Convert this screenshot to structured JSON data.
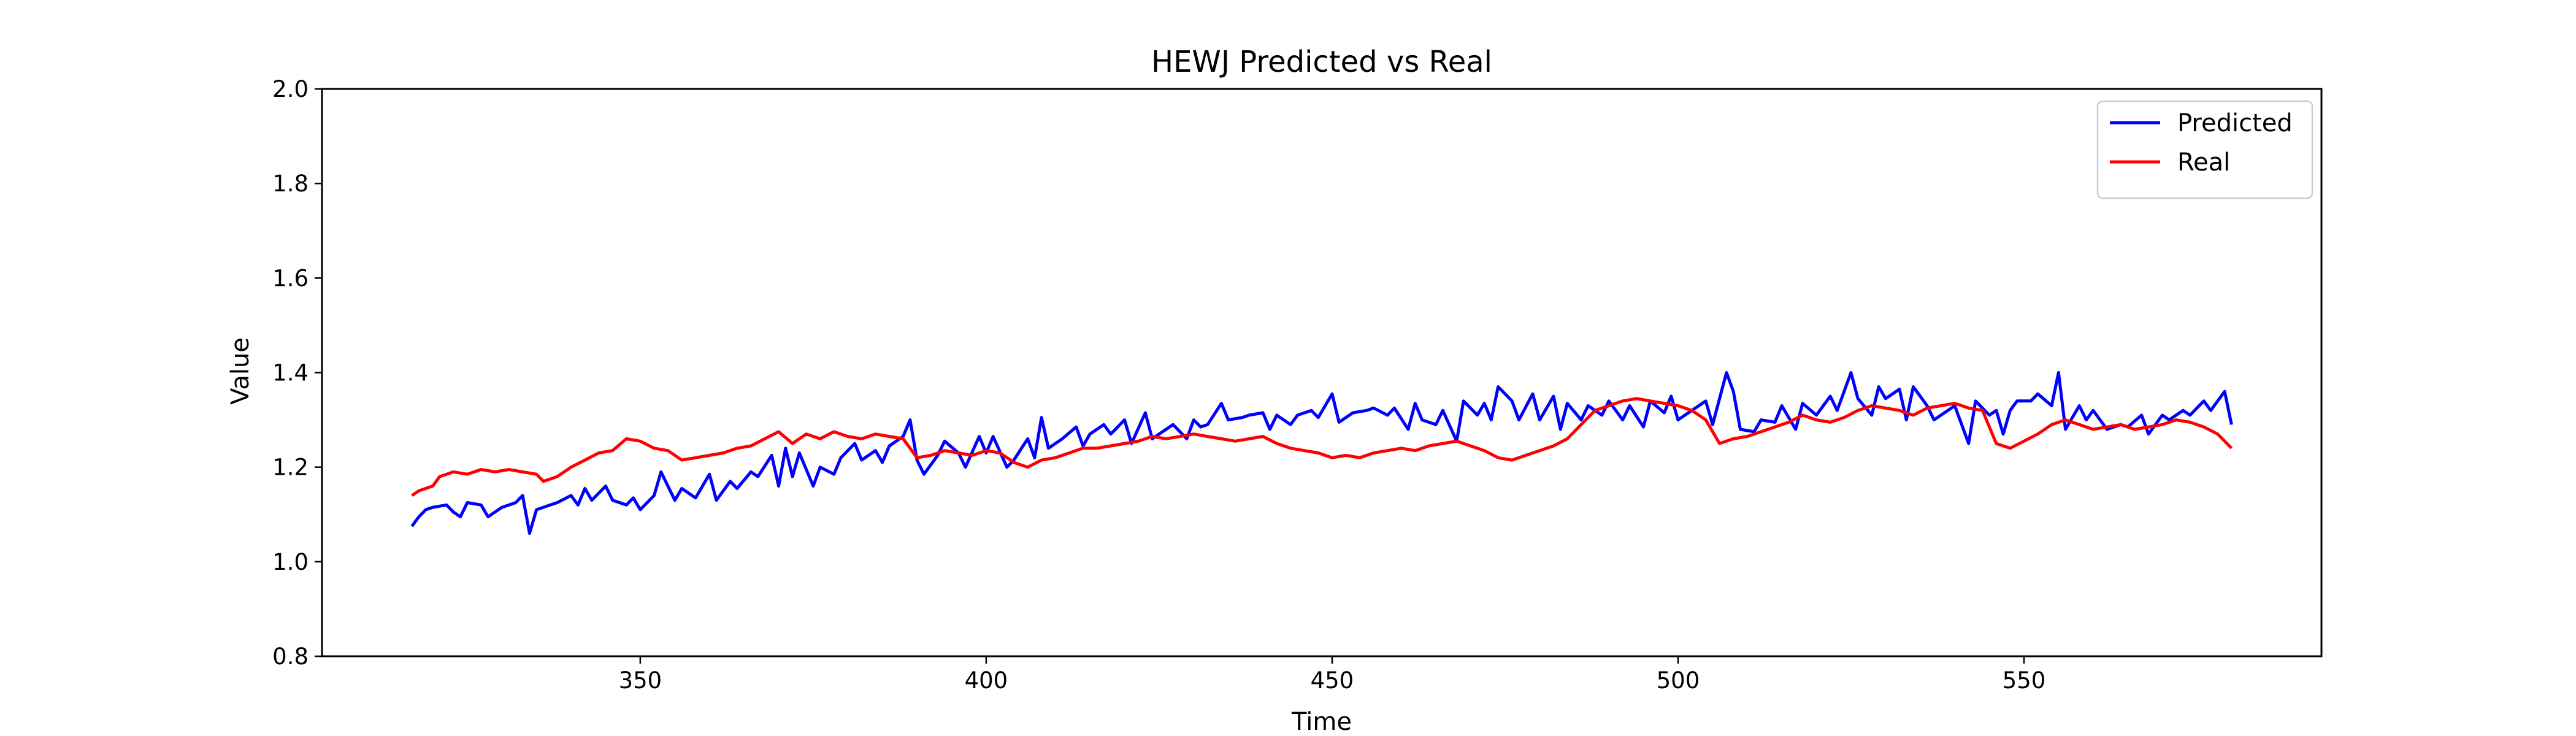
{
  "chart_data": {
    "type": "line",
    "title": "HEWJ Predicted vs Real",
    "xlabel": "Time",
    "ylabel": "Value",
    "xlim": [
      304,
      593
    ],
    "ylim": [
      0.8,
      2.0
    ],
    "xticks": [
      350,
      400,
      450,
      500,
      550
    ],
    "yticks": [
      0.8,
      1.0,
      1.2,
      1.4,
      1.6,
      1.8,
      2.0
    ],
    "grid": false,
    "legend_position": "top-right",
    "series": [
      {
        "name": "Predicted",
        "color": "#0000ff",
        "points": [
          [
            317,
            1.075
          ],
          [
            318,
            1.095
          ],
          [
            319,
            1.11
          ],
          [
            320,
            1.115
          ],
          [
            322,
            1.12
          ],
          [
            323,
            1.105
          ],
          [
            324,
            1.095
          ],
          [
            325,
            1.125
          ],
          [
            327,
            1.12
          ],
          [
            328,
            1.095
          ],
          [
            330,
            1.115
          ],
          [
            332,
            1.125
          ],
          [
            333,
            1.14
          ],
          [
            334,
            1.06
          ],
          [
            335,
            1.11
          ],
          [
            337,
            1.12
          ],
          [
            338,
            1.125
          ],
          [
            340,
            1.14
          ],
          [
            341,
            1.12
          ],
          [
            342,
            1.155
          ],
          [
            343,
            1.13
          ],
          [
            345,
            1.16
          ],
          [
            346,
            1.13
          ],
          [
            348,
            1.12
          ],
          [
            349,
            1.135
          ],
          [
            350,
            1.11
          ],
          [
            352,
            1.14
          ],
          [
            353,
            1.19
          ],
          [
            355,
            1.13
          ],
          [
            356,
            1.155
          ],
          [
            358,
            1.135
          ],
          [
            360,
            1.185
          ],
          [
            361,
            1.13
          ],
          [
            363,
            1.17
          ],
          [
            364,
            1.155
          ],
          [
            366,
            1.19
          ],
          [
            367,
            1.18
          ],
          [
            369,
            1.225
          ],
          [
            370,
            1.16
          ],
          [
            371,
            1.24
          ],
          [
            372,
            1.18
          ],
          [
            373,
            1.23
          ],
          [
            375,
            1.16
          ],
          [
            376,
            1.2
          ],
          [
            378,
            1.185
          ],
          [
            379,
            1.22
          ],
          [
            381,
            1.25
          ],
          [
            382,
            1.215
          ],
          [
            384,
            1.235
          ],
          [
            385,
            1.21
          ],
          [
            386,
            1.245
          ],
          [
            388,
            1.265
          ],
          [
            389,
            1.3
          ],
          [
            390,
            1.215
          ],
          [
            391,
            1.185
          ],
          [
            393,
            1.225
          ],
          [
            394,
            1.255
          ],
          [
            396,
            1.23
          ],
          [
            397,
            1.2
          ],
          [
            399,
            1.265
          ],
          [
            400,
            1.23
          ],
          [
            401,
            1.265
          ],
          [
            403,
            1.2
          ],
          [
            404,
            1.215
          ],
          [
            406,
            1.26
          ],
          [
            407,
            1.22
          ],
          [
            408,
            1.305
          ],
          [
            409,
            1.24
          ],
          [
            411,
            1.26
          ],
          [
            413,
            1.285
          ],
          [
            414,
            1.245
          ],
          [
            415,
            1.27
          ],
          [
            417,
            1.29
          ],
          [
            418,
            1.27
          ],
          [
            420,
            1.3
          ],
          [
            421,
            1.25
          ],
          [
            423,
            1.315
          ],
          [
            424,
            1.26
          ],
          [
            426,
            1.28
          ],
          [
            427,
            1.29
          ],
          [
            429,
            1.26
          ],
          [
            430,
            1.3
          ],
          [
            431,
            1.285
          ],
          [
            432,
            1.29
          ],
          [
            434,
            1.335
          ],
          [
            435,
            1.3
          ],
          [
            437,
            1.305
          ],
          [
            438,
            1.31
          ],
          [
            440,
            1.315
          ],
          [
            441,
            1.28
          ],
          [
            442,
            1.31
          ],
          [
            444,
            1.29
          ],
          [
            445,
            1.31
          ],
          [
            447,
            1.32
          ],
          [
            448,
            1.305
          ],
          [
            450,
            1.355
          ],
          [
            451,
            1.295
          ],
          [
            453,
            1.315
          ],
          [
            455,
            1.32
          ],
          [
            456,
            1.325
          ],
          [
            458,
            1.31
          ],
          [
            459,
            1.325
          ],
          [
            461,
            1.28
          ],
          [
            462,
            1.335
          ],
          [
            463,
            1.3
          ],
          [
            465,
            1.29
          ],
          [
            466,
            1.32
          ],
          [
            468,
            1.255
          ],
          [
            469,
            1.34
          ],
          [
            471,
            1.31
          ],
          [
            472,
            1.335
          ],
          [
            473,
            1.3
          ],
          [
            474,
            1.37
          ],
          [
            476,
            1.34
          ],
          [
            477,
            1.3
          ],
          [
            479,
            1.355
          ],
          [
            480,
            1.3
          ],
          [
            482,
            1.35
          ],
          [
            483,
            1.28
          ],
          [
            484,
            1.335
          ],
          [
            486,
            1.3
          ],
          [
            487,
            1.33
          ],
          [
            489,
            1.31
          ],
          [
            490,
            1.34
          ],
          [
            492,
            1.3
          ],
          [
            493,
            1.33
          ],
          [
            495,
            1.285
          ],
          [
            496,
            1.34
          ],
          [
            498,
            1.315
          ],
          [
            499,
            1.35
          ],
          [
            500,
            1.3
          ],
          [
            502,
            1.32
          ],
          [
            504,
            1.34
          ],
          [
            505,
            1.29
          ],
          [
            507,
            1.4
          ],
          [
            508,
            1.36
          ],
          [
            509,
            1.28
          ],
          [
            511,
            1.275
          ],
          [
            512,
            1.3
          ],
          [
            514,
            1.295
          ],
          [
            515,
            1.33
          ],
          [
            517,
            1.28
          ],
          [
            518,
            1.335
          ],
          [
            520,
            1.31
          ],
          [
            522,
            1.35
          ],
          [
            523,
            1.32
          ],
          [
            525,
            1.4
          ],
          [
            526,
            1.345
          ],
          [
            528,
            1.31
          ],
          [
            529,
            1.37
          ],
          [
            530,
            1.345
          ],
          [
            532,
            1.365
          ],
          [
            533,
            1.3
          ],
          [
            534,
            1.37
          ],
          [
            536,
            1.33
          ],
          [
            537,
            1.3
          ],
          [
            539,
            1.32
          ],
          [
            540,
            1.33
          ],
          [
            542,
            1.25
          ],
          [
            543,
            1.34
          ],
          [
            545,
            1.31
          ],
          [
            546,
            1.32
          ],
          [
            547,
            1.27
          ],
          [
            548,
            1.32
          ],
          [
            549,
            1.34
          ],
          [
            551,
            1.34
          ],
          [
            552,
            1.355
          ],
          [
            554,
            1.33
          ],
          [
            555,
            1.4
          ],
          [
            556,
            1.28
          ],
          [
            558,
            1.33
          ],
          [
            559,
            1.3
          ],
          [
            560,
            1.32
          ],
          [
            562,
            1.28
          ],
          [
            564,
            1.29
          ],
          [
            565,
            1.285
          ],
          [
            567,
            1.31
          ],
          [
            568,
            1.27
          ],
          [
            570,
            1.31
          ],
          [
            571,
            1.3
          ],
          [
            573,
            1.32
          ],
          [
            574,
            1.31
          ],
          [
            576,
            1.34
          ],
          [
            577,
            1.32
          ],
          [
            579,
            1.36
          ],
          [
            580,
            1.29
          ]
        ]
      },
      {
        "name": "Real",
        "color": "#ff0000",
        "points": [
          [
            317,
            1.14
          ],
          [
            318,
            1.15
          ],
          [
            320,
            1.16
          ],
          [
            321,
            1.18
          ],
          [
            323,
            1.19
          ],
          [
            325,
            1.185
          ],
          [
            327,
            1.195
          ],
          [
            329,
            1.19
          ],
          [
            331,
            1.195
          ],
          [
            333,
            1.19
          ],
          [
            335,
            1.185
          ],
          [
            336,
            1.17
          ],
          [
            338,
            1.18
          ],
          [
            340,
            1.2
          ],
          [
            342,
            1.215
          ],
          [
            344,
            1.23
          ],
          [
            346,
            1.235
          ],
          [
            348,
            1.26
          ],
          [
            350,
            1.255
          ],
          [
            352,
            1.24
          ],
          [
            354,
            1.235
          ],
          [
            356,
            1.215
          ],
          [
            358,
            1.22
          ],
          [
            360,
            1.225
          ],
          [
            362,
            1.23
          ],
          [
            364,
            1.24
          ],
          [
            366,
            1.245
          ],
          [
            368,
            1.26
          ],
          [
            370,
            1.275
          ],
          [
            372,
            1.25
          ],
          [
            374,
            1.27
          ],
          [
            376,
            1.26
          ],
          [
            378,
            1.275
          ],
          [
            380,
            1.265
          ],
          [
            382,
            1.26
          ],
          [
            384,
            1.27
          ],
          [
            386,
            1.265
          ],
          [
            388,
            1.26
          ],
          [
            390,
            1.22
          ],
          [
            392,
            1.225
          ],
          [
            394,
            1.235
          ],
          [
            396,
            1.23
          ],
          [
            398,
            1.225
          ],
          [
            400,
            1.235
          ],
          [
            402,
            1.23
          ],
          [
            404,
            1.21
          ],
          [
            406,
            1.2
          ],
          [
            408,
            1.215
          ],
          [
            410,
            1.22
          ],
          [
            412,
            1.23
          ],
          [
            414,
            1.24
          ],
          [
            416,
            1.24
          ],
          [
            418,
            1.245
          ],
          [
            420,
            1.25
          ],
          [
            422,
            1.255
          ],
          [
            424,
            1.265
          ],
          [
            426,
            1.26
          ],
          [
            428,
            1.265
          ],
          [
            430,
            1.27
          ],
          [
            432,
            1.265
          ],
          [
            434,
            1.26
          ],
          [
            436,
            1.255
          ],
          [
            438,
            1.26
          ],
          [
            440,
            1.265
          ],
          [
            442,
            1.25
          ],
          [
            444,
            1.24
          ],
          [
            446,
            1.235
          ],
          [
            448,
            1.23
          ],
          [
            450,
            1.22
          ],
          [
            452,
            1.225
          ],
          [
            454,
            1.22
          ],
          [
            456,
            1.23
          ],
          [
            458,
            1.235
          ],
          [
            460,
            1.24
          ],
          [
            462,
            1.235
          ],
          [
            464,
            1.245
          ],
          [
            466,
            1.25
          ],
          [
            468,
            1.255
          ],
          [
            470,
            1.245
          ],
          [
            472,
            1.235
          ],
          [
            474,
            1.22
          ],
          [
            476,
            1.215
          ],
          [
            478,
            1.225
          ],
          [
            480,
            1.235
          ],
          [
            482,
            1.245
          ],
          [
            484,
            1.26
          ],
          [
            486,
            1.29
          ],
          [
            488,
            1.32
          ],
          [
            490,
            1.33
          ],
          [
            492,
            1.34
          ],
          [
            494,
            1.345
          ],
          [
            496,
            1.34
          ],
          [
            498,
            1.335
          ],
          [
            500,
            1.33
          ],
          [
            502,
            1.32
          ],
          [
            504,
            1.3
          ],
          [
            506,
            1.25
          ],
          [
            508,
            1.26
          ],
          [
            510,
            1.265
          ],
          [
            512,
            1.275
          ],
          [
            514,
            1.285
          ],
          [
            516,
            1.295
          ],
          [
            518,
            1.31
          ],
          [
            520,
            1.3
          ],
          [
            522,
            1.295
          ],
          [
            524,
            1.305
          ],
          [
            526,
            1.32
          ],
          [
            528,
            1.33
          ],
          [
            530,
            1.325
          ],
          [
            532,
            1.32
          ],
          [
            534,
            1.31
          ],
          [
            536,
            1.325
          ],
          [
            538,
            1.33
          ],
          [
            540,
            1.335
          ],
          [
            542,
            1.325
          ],
          [
            544,
            1.32
          ],
          [
            546,
            1.25
          ],
          [
            548,
            1.24
          ],
          [
            550,
            1.255
          ],
          [
            552,
            1.27
          ],
          [
            554,
            1.29
          ],
          [
            556,
            1.3
          ],
          [
            558,
            1.29
          ],
          [
            560,
            1.28
          ],
          [
            562,
            1.285
          ],
          [
            564,
            1.29
          ],
          [
            566,
            1.28
          ],
          [
            568,
            1.285
          ],
          [
            570,
            1.29
          ],
          [
            572,
            1.3
          ],
          [
            574,
            1.295
          ],
          [
            576,
            1.285
          ],
          [
            578,
            1.27
          ],
          [
            580,
            1.24
          ]
        ]
      }
    ]
  }
}
